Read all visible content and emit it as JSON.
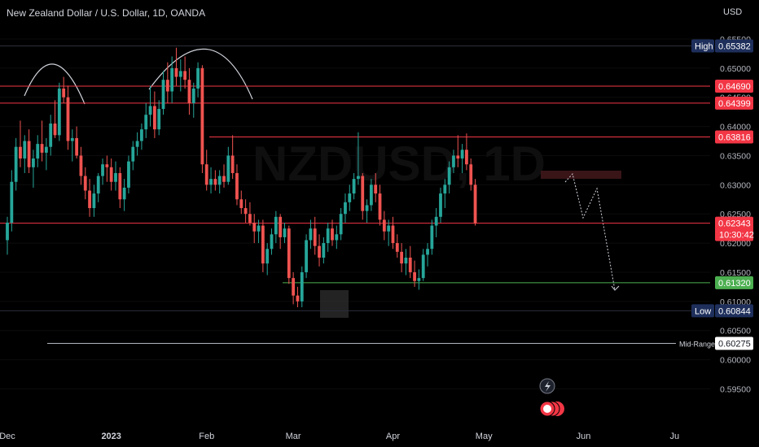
{
  "header": {
    "title": "New Zealand Dollar / U.S. Dollar, 1D, OANDA",
    "currency": "USD"
  },
  "chart_data": {
    "type": "candlestick",
    "price_range": [
      0.592,
      0.6575
    ],
    "y_ticks": [
      "0.65500",
      "0.65000",
      "0.64500",
      "0.64000",
      "0.63500",
      "0.63000",
      "0.62500",
      "0.62000",
      "0.61500",
      "0.61000",
      "0.60500",
      "0.60000",
      "0.59500"
    ],
    "x_ticks": [
      {
        "label": "Dec",
        "bar": 0
      },
      {
        "label": "2023",
        "bar": 24,
        "bold": true
      },
      {
        "label": "Feb",
        "bar": 46
      },
      {
        "label": "Mar",
        "bar": 66
      },
      {
        "label": "Apr",
        "bar": 89
      },
      {
        "label": "May",
        "bar": 110
      },
      {
        "label": "Jun",
        "bar": 133
      },
      {
        "label": "Ju",
        "bar": 154
      }
    ],
    "candles": [
      [
        0.6205,
        0.6245,
        0.618,
        0.6235
      ],
      [
        0.6235,
        0.6325,
        0.622,
        0.6305
      ],
      [
        0.6305,
        0.638,
        0.629,
        0.6365
      ],
      [
        0.6365,
        0.641,
        0.633,
        0.6345
      ],
      [
        0.6345,
        0.6385,
        0.632,
        0.6375
      ],
      [
        0.6375,
        0.6395,
        0.632,
        0.633
      ],
      [
        0.633,
        0.636,
        0.6295,
        0.6345
      ],
      [
        0.6345,
        0.6385,
        0.633,
        0.637
      ],
      [
        0.637,
        0.641,
        0.634,
        0.6355
      ],
      [
        0.6355,
        0.638,
        0.6325,
        0.6365
      ],
      [
        0.6365,
        0.642,
        0.635,
        0.6405
      ],
      [
        0.6405,
        0.6445,
        0.638,
        0.6385
      ],
      [
        0.6385,
        0.6475,
        0.6375,
        0.6465
      ],
      [
        0.6465,
        0.6485,
        0.644,
        0.645
      ],
      [
        0.645,
        0.647,
        0.636,
        0.6375
      ],
      [
        0.6375,
        0.6395,
        0.634,
        0.638
      ],
      [
        0.638,
        0.64,
        0.6345,
        0.635
      ],
      [
        0.635,
        0.6365,
        0.63,
        0.6315
      ],
      [
        0.6315,
        0.633,
        0.6275,
        0.629
      ],
      [
        0.629,
        0.631,
        0.6245,
        0.626
      ],
      [
        0.626,
        0.63,
        0.6245,
        0.6285
      ],
      [
        0.6285,
        0.632,
        0.627,
        0.6315
      ],
      [
        0.6315,
        0.6345,
        0.63,
        0.6335
      ],
      [
        0.6335,
        0.635,
        0.6305,
        0.633
      ],
      [
        0.633,
        0.6345,
        0.629,
        0.6305
      ],
      [
        0.6305,
        0.634,
        0.629,
        0.632
      ],
      [
        0.632,
        0.633,
        0.626,
        0.6275
      ],
      [
        0.6275,
        0.631,
        0.6255,
        0.6295
      ],
      [
        0.6295,
        0.635,
        0.6285,
        0.634
      ],
      [
        0.634,
        0.6375,
        0.6325,
        0.6365
      ],
      [
        0.6365,
        0.639,
        0.635,
        0.6375
      ],
      [
        0.6375,
        0.6405,
        0.636,
        0.6395
      ],
      [
        0.6395,
        0.644,
        0.638,
        0.642
      ],
      [
        0.642,
        0.647,
        0.64,
        0.6435
      ],
      [
        0.6435,
        0.646,
        0.638,
        0.6395
      ],
      [
        0.6395,
        0.6445,
        0.6385,
        0.643
      ],
      [
        0.643,
        0.6495,
        0.642,
        0.648
      ],
      [
        0.648,
        0.651,
        0.644,
        0.646
      ],
      [
        0.646,
        0.652,
        0.644,
        0.65
      ],
      [
        0.65,
        0.6535,
        0.647,
        0.6485
      ],
      [
        0.6485,
        0.6515,
        0.646,
        0.6495
      ],
      [
        0.6495,
        0.652,
        0.6465,
        0.648
      ],
      [
        0.648,
        0.65,
        0.642,
        0.644
      ],
      [
        0.644,
        0.6475,
        0.6415,
        0.6465
      ],
      [
        0.6465,
        0.651,
        0.645,
        0.65
      ],
      [
        0.65,
        0.6505,
        0.632,
        0.6335
      ],
      [
        0.6335,
        0.636,
        0.629,
        0.63
      ],
      [
        0.63,
        0.633,
        0.6285,
        0.631
      ],
      [
        0.631,
        0.6325,
        0.629,
        0.63
      ],
      [
        0.63,
        0.6325,
        0.6285,
        0.6315
      ],
      [
        0.6315,
        0.6335,
        0.6295,
        0.6305
      ],
      [
        0.6305,
        0.6365,
        0.63,
        0.635
      ],
      [
        0.635,
        0.6385,
        0.631,
        0.632
      ],
      [
        0.632,
        0.6335,
        0.6265,
        0.6275
      ],
      [
        0.6275,
        0.629,
        0.625,
        0.626
      ],
      [
        0.626,
        0.6275,
        0.6235,
        0.625
      ],
      [
        0.625,
        0.627,
        0.623,
        0.6235
      ],
      [
        0.6235,
        0.625,
        0.62,
        0.622
      ],
      [
        0.622,
        0.624,
        0.62,
        0.623
      ],
      [
        0.623,
        0.624,
        0.615,
        0.6165
      ],
      [
        0.6165,
        0.62,
        0.6145,
        0.619
      ],
      [
        0.619,
        0.6225,
        0.618,
        0.6215
      ],
      [
        0.6215,
        0.6255,
        0.62,
        0.6245
      ],
      [
        0.6245,
        0.625,
        0.619,
        0.621
      ],
      [
        0.621,
        0.6235,
        0.62,
        0.6225
      ],
      [
        0.6225,
        0.623,
        0.613,
        0.614
      ],
      [
        0.614,
        0.615,
        0.6095,
        0.611
      ],
      [
        0.611,
        0.6125,
        0.609,
        0.61
      ],
      [
        0.61,
        0.616,
        0.609,
        0.615
      ],
      [
        0.615,
        0.6215,
        0.614,
        0.6205
      ],
      [
        0.6205,
        0.624,
        0.619,
        0.6225
      ],
      [
        0.6225,
        0.6245,
        0.618,
        0.6195
      ],
      [
        0.6195,
        0.6215,
        0.616,
        0.6175
      ],
      [
        0.6175,
        0.621,
        0.6165,
        0.62
      ],
      [
        0.62,
        0.6235,
        0.6185,
        0.6225
      ],
      [
        0.6225,
        0.624,
        0.6195,
        0.6205
      ],
      [
        0.6205,
        0.623,
        0.619,
        0.6215
      ],
      [
        0.6215,
        0.626,
        0.6205,
        0.625
      ],
      [
        0.625,
        0.6285,
        0.6235,
        0.627
      ],
      [
        0.627,
        0.63,
        0.6255,
        0.6285
      ],
      [
        0.6285,
        0.632,
        0.6275,
        0.631
      ],
      [
        0.631,
        0.639,
        0.63,
        0.6315
      ],
      [
        0.6315,
        0.632,
        0.624,
        0.6255
      ],
      [
        0.6255,
        0.6275,
        0.6235,
        0.6265
      ],
      [
        0.6265,
        0.631,
        0.6255,
        0.63
      ],
      [
        0.63,
        0.632,
        0.627,
        0.6285
      ],
      [
        0.6285,
        0.63,
        0.623,
        0.624
      ],
      [
        0.624,
        0.6255,
        0.6205,
        0.622
      ],
      [
        0.622,
        0.624,
        0.6195,
        0.623
      ],
      [
        0.623,
        0.6245,
        0.619,
        0.62
      ],
      [
        0.62,
        0.6215,
        0.6175,
        0.6185
      ],
      [
        0.6185,
        0.62,
        0.615,
        0.6165
      ],
      [
        0.6165,
        0.619,
        0.6145,
        0.6175
      ],
      [
        0.6175,
        0.6195,
        0.614,
        0.615
      ],
      [
        0.615,
        0.617,
        0.6125,
        0.6135
      ],
      [
        0.6135,
        0.6155,
        0.612,
        0.614
      ],
      [
        0.614,
        0.619,
        0.6135,
        0.618
      ],
      [
        0.618,
        0.62,
        0.616,
        0.619
      ],
      [
        0.619,
        0.624,
        0.618,
        0.623
      ],
      [
        0.623,
        0.626,
        0.621,
        0.6245
      ],
      [
        0.6245,
        0.6295,
        0.6235,
        0.6285
      ],
      [
        0.6285,
        0.631,
        0.626,
        0.63
      ],
      [
        0.63,
        0.634,
        0.6285,
        0.633
      ],
      [
        0.633,
        0.636,
        0.632,
        0.635
      ],
      [
        0.635,
        0.6385,
        0.633,
        0.6345
      ],
      [
        0.6345,
        0.637,
        0.632,
        0.636
      ],
      [
        0.636,
        0.6388,
        0.6325,
        0.6335
      ],
      [
        0.6335,
        0.6345,
        0.629,
        0.63
      ],
      [
        0.63,
        0.631,
        0.623,
        0.6234
      ]
    ],
    "h_lines": [
      {
        "price": 0.6538,
        "color": "#2a2e39",
        "name": "high-line"
      },
      {
        "price": 0.6469,
        "color": "#f23645",
        "name": "resistance-line-06469"
      },
      {
        "price": 0.644,
        "color": "#f23645",
        "name": "resistance-line-06440"
      },
      {
        "price": 0.6382,
        "color": "#f23645",
        "name": "resistance-line-06382"
      },
      {
        "price": 0.6234,
        "color": "#f23645",
        "name": "last-price-line"
      },
      {
        "price": 0.6132,
        "color": "#4caf50",
        "name": "support-line-06132"
      },
      {
        "price": 0.6084,
        "color": "#2a2e39",
        "name": "low-line"
      },
      {
        "price": 0.6028,
        "color": "#b2b5be",
        "name": "mid-range-line"
      }
    ],
    "price_labels": [
      {
        "text": "High",
        "value": "0.65382",
        "price": 0.6538,
        "bg": "#1e2f5c",
        "fg": "#ffffff"
      },
      {
        "value": "0.64690",
        "price": 0.6469,
        "bg": "#f23645",
        "fg": "#ffffff"
      },
      {
        "value": "0.64399",
        "price": 0.644,
        "bg": "#f23645",
        "fg": "#ffffff"
      },
      {
        "value": "0.63816",
        "price": 0.6382,
        "bg": "#f23645",
        "fg": "#ffffff"
      },
      {
        "value": "0.62343",
        "sub": "10:30:42",
        "price": 0.6234,
        "bg": "#f23645",
        "fg": "#ffffff"
      },
      {
        "value": "0.61320",
        "price": 0.6132,
        "bg": "#4caf50",
        "fg": "#ffffff"
      },
      {
        "text": "Low",
        "value": "0.60844",
        "price": 0.6084,
        "bg": "#1e2f5c",
        "fg": "#ffffff"
      },
      {
        "text": "Mid-Range",
        "value": "0.60275",
        "price": 0.6028,
        "bg": "#ffffff",
        "fg": "#131722"
      }
    ],
    "colors": {
      "up": "#26a69a",
      "down": "#ef5350",
      "bg": "#000000"
    }
  }
}
